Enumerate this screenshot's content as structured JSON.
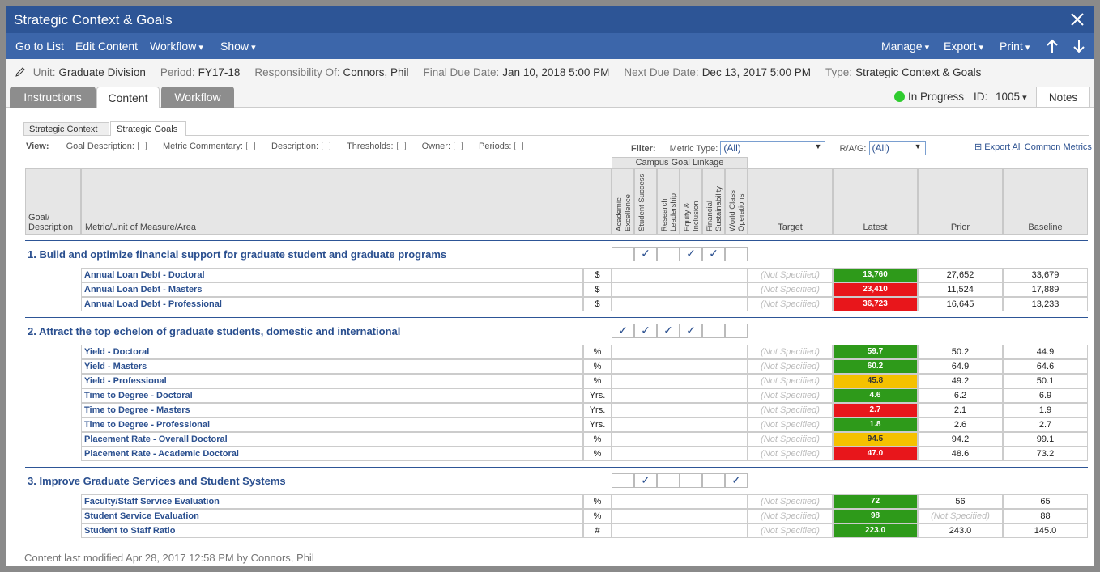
{
  "header": {
    "title": "Strategic Context & Goals"
  },
  "toolbar": {
    "left": [
      "Go to List",
      "Edit Content",
      "Workflow",
      "Show"
    ],
    "right": [
      "Manage",
      "Export",
      "Print"
    ]
  },
  "info": [
    {
      "label": "Unit:",
      "value": "Graduate Division"
    },
    {
      "label": "Period:",
      "value": "FY17-18"
    },
    {
      "label": "Responsibility Of:",
      "value": "Connors, Phil"
    },
    {
      "label": "Final Due Date:",
      "value": "Jan 10, 2018 5:00 PM"
    },
    {
      "label": "Next Due Date:",
      "value": "Dec 13, 2017 5:00 PM"
    },
    {
      "label": "Type:",
      "value": "Strategic Context & Goals"
    }
  ],
  "tabs": {
    "items": [
      "Instructions",
      "Content",
      "Workflow"
    ],
    "active": 1,
    "status": "In Progress",
    "id_label": "ID:",
    "id_value": "1005",
    "notes": "Notes"
  },
  "subtabs": {
    "items": [
      "Strategic Context",
      "Strategic Goals"
    ],
    "active": 1
  },
  "view": {
    "label": "View:",
    "options": [
      "Goal Description:",
      "Metric Commentary:",
      "Description:",
      "Thresholds:",
      "Owner:",
      "Periods:"
    ]
  },
  "filter": {
    "label": "Filter:",
    "metric_type_label": "Metric Type:",
    "metric_type_value": "(All)",
    "rag_label": "R/A/G:",
    "rag_value": "(All)",
    "export": "Export All Common Metrics"
  },
  "table": {
    "linkage_title": "Campus Goal Linkage",
    "linkage": [
      "Academic Excellence",
      "Student Success",
      "Research Leadership",
      "Equity & Inclusion",
      "Financial Sustainability",
      "World Class Operations"
    ],
    "goal_header": "Goal/ Description",
    "metric_header": "Metric/Unit of Measure/Area",
    "target_header": "Target",
    "latest_header": "Latest",
    "prior_header": "Prior",
    "baseline_header": "Baseline",
    "goals": [
      {
        "title": "1. Build and optimize financial support for graduate student and graduate programs",
        "linkage": [
          false,
          true,
          false,
          true,
          true,
          false
        ],
        "metrics": [
          {
            "name": "Annual Loan Debt - Doctoral",
            "unit": "$",
            "target": "(Not Specified)",
            "latest": "13,760",
            "status": "green",
            "prior": "27,652",
            "baseline": "33,679"
          },
          {
            "name": "Annual Loan Debt - Masters",
            "unit": "$",
            "target": "(Not Specified)",
            "latest": "23,410",
            "status": "red",
            "prior": "11,524",
            "baseline": "17,889"
          },
          {
            "name": "Annual Load Debt - Professional",
            "unit": "$",
            "target": "(Not Specified)",
            "latest": "36,723",
            "status": "red",
            "prior": "16,645",
            "baseline": "13,233"
          }
        ]
      },
      {
        "title": "2. Attract the top echelon of graduate students, domestic and international",
        "linkage": [
          true,
          true,
          true,
          true,
          false,
          false
        ],
        "metrics": [
          {
            "name": "Yield - Doctoral",
            "unit": "%",
            "target": "(Not Specified)",
            "latest": "59.7",
            "status": "green",
            "prior": "50.2",
            "baseline": "44.9"
          },
          {
            "name": "Yield - Masters",
            "unit": "%",
            "target": "(Not Specified)",
            "latest": "60.2",
            "status": "green",
            "prior": "64.9",
            "baseline": "64.6"
          },
          {
            "name": "Yield - Professional",
            "unit": "%",
            "target": "(Not Specified)",
            "latest": "45.8",
            "status": "amber",
            "prior": "49.2",
            "baseline": "50.1"
          },
          {
            "name": "Time to Degree - Doctoral",
            "unit": "Yrs.",
            "target": "(Not Specified)",
            "latest": "4.6",
            "status": "green",
            "prior": "6.2",
            "baseline": "6.9"
          },
          {
            "name": "Time to Degree - Masters",
            "unit": "Yrs.",
            "target": "(Not Specified)",
            "latest": "2.7",
            "status": "red",
            "prior": "2.1",
            "baseline": "1.9"
          },
          {
            "name": "Time to Degree - Professional",
            "unit": "Yrs.",
            "target": "(Not Specified)",
            "latest": "1.8",
            "status": "green",
            "prior": "2.6",
            "baseline": "2.7"
          },
          {
            "name": "Placement Rate - Overall Doctoral",
            "unit": "%",
            "target": "(Not Specified)",
            "latest": "94.5",
            "status": "amber",
            "prior": "94.2",
            "baseline": "99.1"
          },
          {
            "name": "Placement Rate - Academic Doctoral",
            "unit": "%",
            "target": "(Not Specified)",
            "latest": "47.0",
            "status": "red",
            "prior": "48.6",
            "baseline": "73.2"
          }
        ]
      },
      {
        "title": "3. Improve Graduate Services and Student Systems",
        "linkage": [
          false,
          true,
          false,
          false,
          false,
          true
        ],
        "metrics": [
          {
            "name": "Faculty/Staff Service Evaluation",
            "unit": "%",
            "target": "(Not Specified)",
            "latest": "72",
            "status": "green",
            "prior": "56",
            "baseline": "65"
          },
          {
            "name": "Student Service Evaluation",
            "unit": "%",
            "target": "(Not Specified)",
            "latest": "98",
            "status": "green",
            "prior": "(Not Specified)",
            "baseline": "88"
          },
          {
            "name": "Student to Staff Ratio",
            "unit": "#",
            "target": "(Not Specified)",
            "latest": "223.0",
            "status": "green",
            "prior": "243.0",
            "baseline": "145.0"
          }
        ]
      }
    ]
  },
  "footer": {
    "text": "Content last modified Apr 28, 2017 12:58 PM by Connors, Phil"
  }
}
